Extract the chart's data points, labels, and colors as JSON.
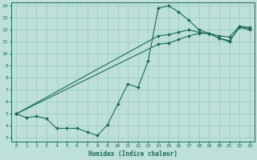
{
  "xlabel": "Humidex (Indice chaleur)",
  "xlim": [
    -0.5,
    23.5
  ],
  "ylim": [
    2.7,
    14.3
  ],
  "xticks": [
    0,
    1,
    2,
    3,
    4,
    5,
    6,
    7,
    8,
    9,
    10,
    11,
    12,
    13,
    14,
    15,
    16,
    17,
    18,
    19,
    20,
    21,
    22,
    23
  ],
  "yticks": [
    3,
    4,
    5,
    6,
    7,
    8,
    9,
    10,
    11,
    12,
    13,
    14
  ],
  "background_color": "#bde0d8",
  "grid_color": "#9fccc4",
  "line_color": "#1a6b5a",
  "lines": [
    {
      "x": [
        0,
        1,
        2,
        3,
        4,
        5,
        6,
        7,
        8,
        9,
        10,
        11,
        12,
        13,
        14,
        15,
        16,
        17,
        18,
        19,
        20,
        21,
        22,
        23
      ],
      "y": [
        5.0,
        4.7,
        4.8,
        4.6,
        3.8,
        3.8,
        3.8,
        3.5,
        3.2,
        4.1,
        5.8,
        7.5,
        7.2,
        9.4,
        13.8,
        14.0,
        13.5,
        12.8,
        12.0,
        11.7,
        11.3,
        11.0,
        12.3,
        12.1
      ]
    },
    {
      "x": [
        0,
        14,
        15,
        16,
        17,
        18,
        19,
        20,
        21,
        22,
        23
      ],
      "y": [
        5.0,
        10.8,
        10.9,
        11.2,
        11.5,
        11.7,
        11.7,
        11.3,
        11.1,
        12.2,
        12.0
      ]
    },
    {
      "x": [
        0,
        14,
        15,
        16,
        17,
        18,
        19,
        20,
        21,
        22,
        23
      ],
      "y": [
        5.0,
        11.5,
        11.6,
        11.8,
        12.0,
        11.8,
        11.7,
        11.5,
        11.4,
        12.3,
        12.2
      ]
    }
  ]
}
